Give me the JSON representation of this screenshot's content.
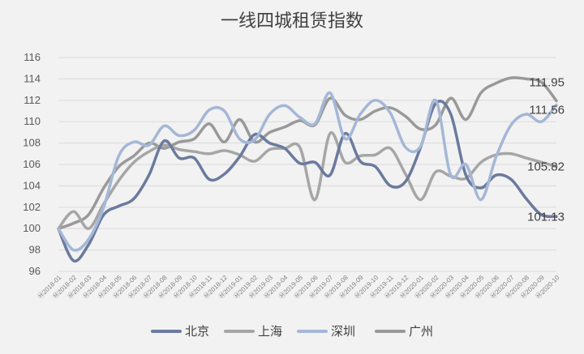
{
  "chart_data": {
    "type": "line",
    "title": "一线四城租赁指数",
    "ylim": [
      96,
      116
    ],
    "y_ticks": [
      "96",
      "98",
      "100",
      "102",
      "104",
      "106",
      "108",
      "110",
      "112",
      "114",
      "116"
    ],
    "categories": [
      "2018-01",
      "2018-02",
      "2018-03",
      "2018-04",
      "2018-05",
      "2018-06",
      "2018-07",
      "2018-08",
      "2018-09",
      "2018-10",
      "2018-11",
      "2018-12",
      "2019-01",
      "2019-02",
      "2019-03",
      "2019-04",
      "2019-05",
      "2019-06",
      "2019-07",
      "2019-08",
      "2019-09",
      "2019-10",
      "2019-11",
      "2019-12",
      "2020-01",
      "2020-02",
      "2020-03",
      "2020-04",
      "2020-05",
      "2020-06",
      "2020-07",
      "2020-08",
      "2020-09",
      "2020-10"
    ],
    "series": [
      {
        "name": "北京",
        "color": "#6b7a9e",
        "values": [
          100.0,
          97.0,
          98.5,
          101.3,
          102.1,
          102.8,
          105.0,
          108.2,
          106.6,
          106.6,
          104.6,
          105.1,
          106.7,
          108.8,
          108.0,
          107.5,
          106.1,
          106.2,
          105.0,
          108.9,
          106.3,
          105.8,
          104.0,
          104.4,
          107.6,
          111.7,
          110.7,
          105.0,
          103.8,
          105.0,
          104.6,
          102.8,
          101.3,
          101.13
        ]
      },
      {
        "name": "上海",
        "color": "#a6a6a6",
        "values": [
          100.0,
          101.6,
          100.0,
          102.3,
          104.5,
          106.2,
          107.2,
          107.8,
          107.4,
          107.2,
          107.0,
          107.3,
          106.9,
          106.3,
          107.4,
          107.5,
          107.6,
          102.7,
          108.9,
          106.2,
          106.8,
          106.9,
          107.5,
          105.1,
          102.7,
          105.3,
          104.9,
          104.7,
          106.2,
          106.9,
          107.0,
          106.6,
          106.2,
          105.82
        ]
      },
      {
        "name": "深圳",
        "color": "#a5b7d6",
        "values": [
          100.0,
          98.0,
          99.0,
          102.0,
          106.8,
          108.1,
          107.8,
          109.6,
          108.7,
          109.2,
          111.1,
          111.0,
          108.4,
          108.3,
          110.7,
          111.5,
          110.4,
          109.8,
          112.7,
          108.4,
          110.7,
          112.0,
          110.8,
          107.6,
          107.7,
          112.0,
          105.0,
          106.0,
          102.7,
          106.7,
          109.7,
          110.7,
          110.0,
          111.56
        ]
      },
      {
        "name": "广州",
        "color": "#999999",
        "values": [
          100.0,
          100.5,
          101.3,
          103.8,
          105.8,
          106.8,
          108.0,
          107.5,
          108.1,
          108.4,
          109.8,
          108.1,
          110.2,
          108.1,
          109.0,
          109.5,
          110.1,
          109.7,
          112.2,
          110.6,
          110.2,
          111.0,
          111.3,
          110.5,
          109.3,
          109.7,
          112.2,
          110.2,
          112.7,
          113.6,
          114.1,
          114.0,
          113.7,
          111.95
        ]
      }
    ],
    "end_labels": [
      "111.95",
      "111.56",
      "105.82",
      "101.13"
    ],
    "grid": "horizontal",
    "legend_position": "bottom"
  },
  "x_tick_prefix": "Ⓜ"
}
